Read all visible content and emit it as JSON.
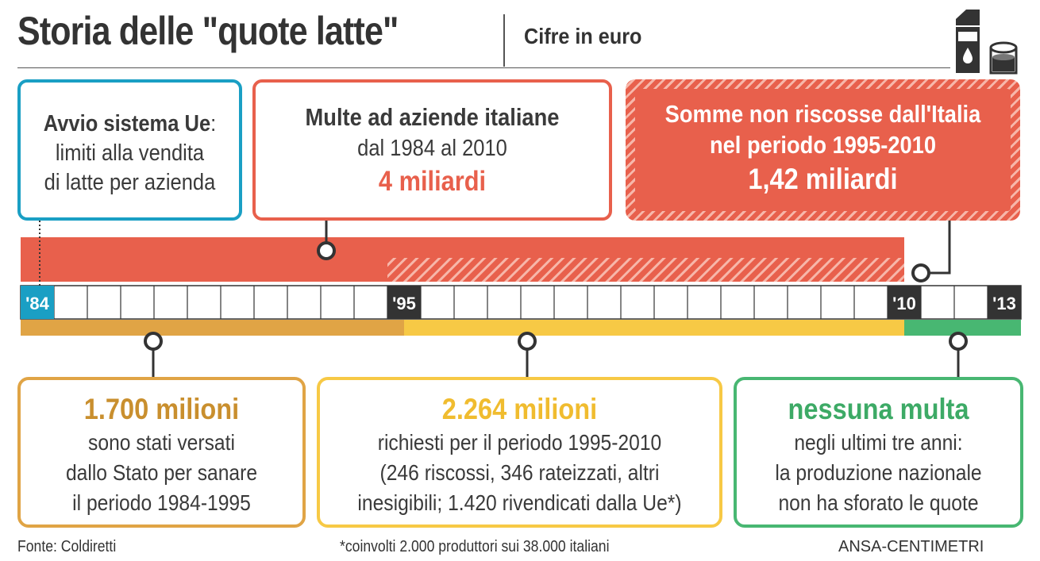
{
  "header": {
    "title": "Storia delle \"quote latte\"",
    "subtitle": "Cifre in euro"
  },
  "top_boxes": {
    "start": {
      "bold": "Avvio sistema Ue",
      "line1_rest": ":",
      "line2": "limiti alla vendita",
      "line3": "di latte per azienda"
    },
    "fines": {
      "line1": "Multe ad aziende italiane",
      "line2": "dal 1984 al 2010",
      "amount": "4 miliardi"
    },
    "uncollected": {
      "line1": "Somme non riscosse dall'Italia",
      "line2": "nel periodo 1995-2010",
      "amount": "1,42  miliardi"
    }
  },
  "timeline": {
    "start_year": 1984,
    "end_year": 2013,
    "year_labels": [
      {
        "year": 1984,
        "label": "'84"
      },
      {
        "year": 1995,
        "label": "'95"
      },
      {
        "year": 2010,
        "label": "'10"
      },
      {
        "year": 2013,
        "label": "'13"
      }
    ],
    "fines_bar": {
      "from": 1984,
      "to": 2010,
      "uncollected_from": 1995
    },
    "periods": [
      {
        "from": 1984,
        "to": 1995,
        "color": "#e0a445"
      },
      {
        "from": 1995,
        "to": 2010,
        "color": "#f7c945"
      },
      {
        "from": 2010,
        "to": 2013,
        "color": "#48b772"
      }
    ]
  },
  "bottom_boxes": {
    "state": {
      "headline": "1.700 milioni",
      "lines": [
        "sono stati versati",
        "dallo Stato per sanare",
        "il periodo 1984-1995"
      ]
    },
    "requested": {
      "headline": "2.264 milioni",
      "lines": [
        "richiesti per il periodo 1995-2010",
        "(246 riscossi, 346 rateizzati, altri",
        "inesigibili; 1.420 rivendicati dalla Ue*)"
      ]
    },
    "none": {
      "headline": "nessuna multa",
      "lines": [
        "negli ultimi tre anni:",
        "la produzione nazionale",
        "non ha sforato le quote"
      ]
    }
  },
  "footer": {
    "source": "Fonte: Coldiretti",
    "footnote": "*coinvolti 2.000 produttori sui 38.000 italiani",
    "credit": "ANSA-CENTIMETRI"
  },
  "colors": {
    "blue": "#1a9fc4",
    "red": "#e8604c",
    "ochre": "#e0a445",
    "yellow": "#f7c945",
    "green": "#48b772",
    "dark": "#333333"
  },
  "icons": [
    "milk-carton-icon",
    "milk-glass-icon"
  ]
}
